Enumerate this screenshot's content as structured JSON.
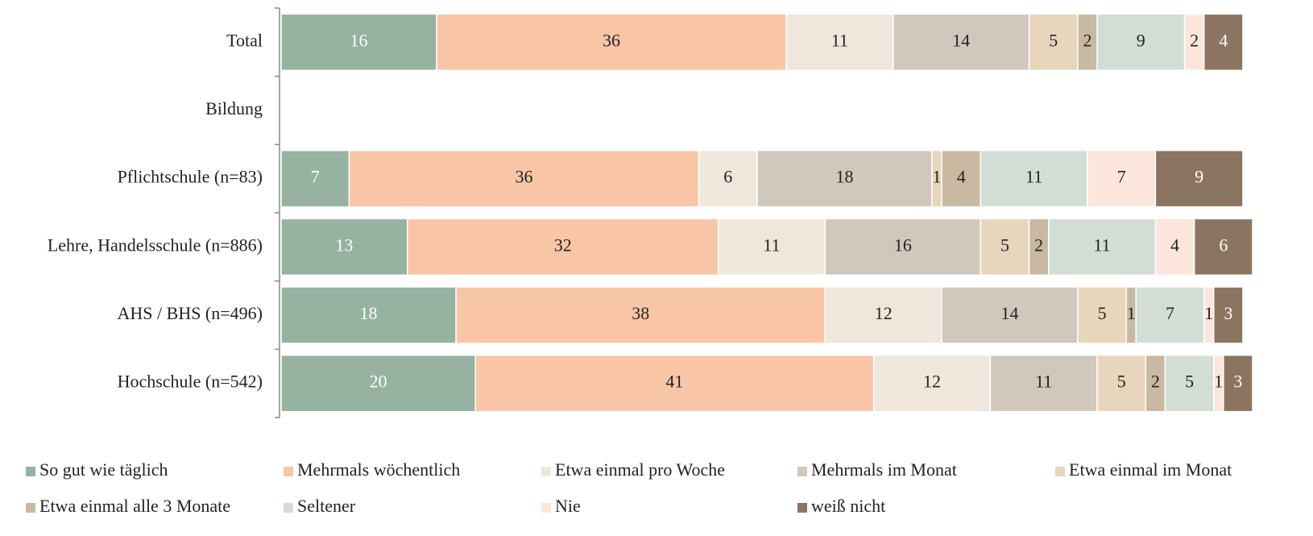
{
  "chart_data": {
    "type": "stacked_bar_horizontal",
    "categories": [
      "Total",
      "Bildung",
      "Pflichtschule (n=83)",
      "Lehre, Handelsschule (n=886)",
      "AHS / BHS (n=496)",
      "Hochschule (n=542)"
    ],
    "xlim": [
      0,
      100
    ],
    "series": [
      {
        "name": "So gut wie täglich",
        "color": "#96b2a0",
        "values": [
          16,
          null,
          7,
          13,
          18,
          20
        ]
      },
      {
        "name": "Mehrmals wöchentlich",
        "color": "#f8c5a6",
        "values": [
          36,
          null,
          36,
          32,
          38,
          41
        ]
      },
      {
        "name": "Etwa einmal pro Woche",
        "color": "#efe7db",
        "values": [
          11,
          null,
          6,
          11,
          12,
          12
        ]
      },
      {
        "name": "Mehrmals im Monat",
        "color": "#d0c7bd",
        "values": [
          14,
          null,
          18,
          16,
          14,
          11
        ]
      },
      {
        "name": "Etwa einmal im Monat",
        "color": "#e7d5bc",
        "values": [
          5,
          null,
          1,
          5,
          5,
          5
        ]
      },
      {
        "name": "Etwa einmal alle 3 Monate",
        "color": "#c8b9a0",
        "values": [
          2,
          null,
          4,
          2,
          1,
          2
        ]
      },
      {
        "name": "Seltener",
        "color": "#d1ddd5",
        "values": [
          9,
          null,
          11,
          11,
          7,
          5
        ]
      },
      {
        "name": "Nie",
        "color": "#fce6dc",
        "values": [
          2,
          null,
          7,
          4,
          1,
          1
        ]
      },
      {
        "name": "weiß nicht",
        "color": "#8c7560",
        "values": [
          4,
          null,
          9,
          6,
          3,
          3
        ]
      }
    ],
    "legend": "bottom"
  }
}
